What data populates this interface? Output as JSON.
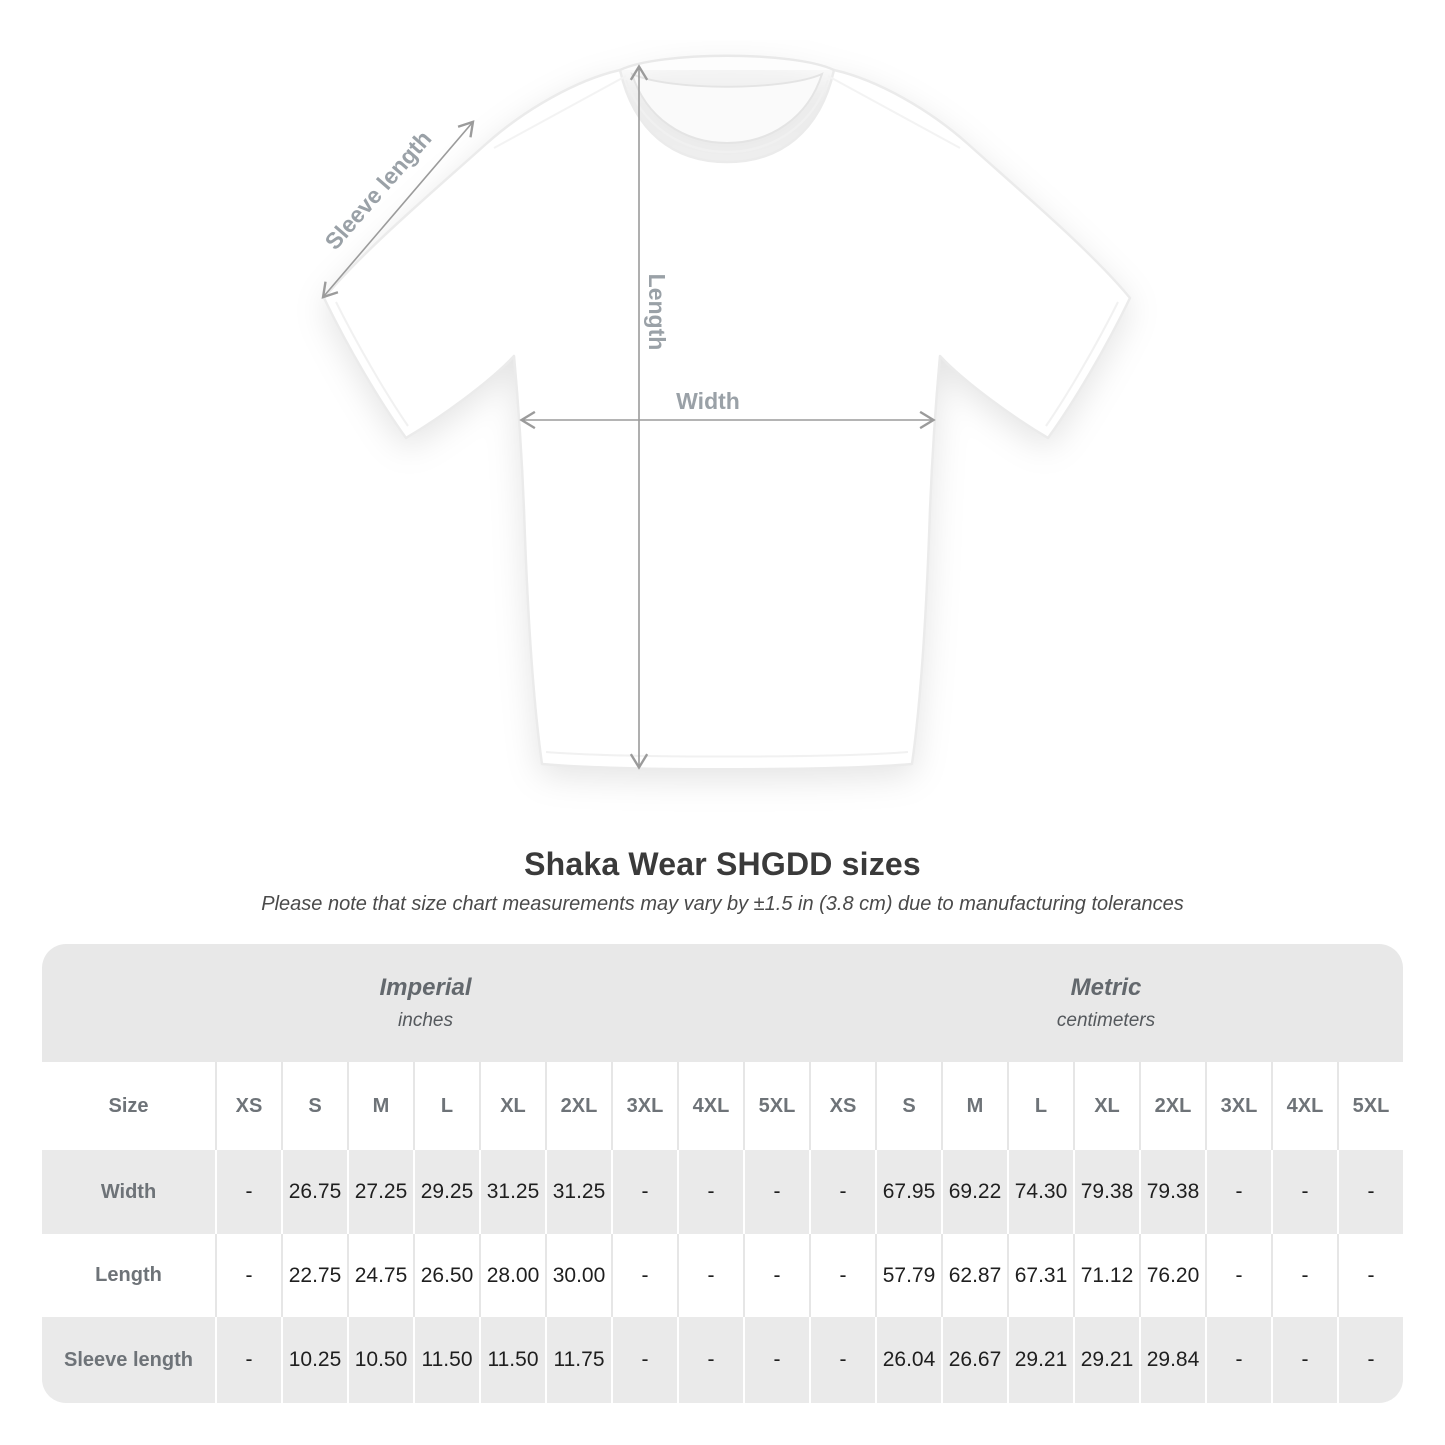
{
  "diagram": {
    "sleeve_label": "Sleeve length",
    "length_label": "Length",
    "width_label": "Width"
  },
  "heading": {
    "title": "Shaka Wear SHGDD sizes",
    "subtitle": "Please note that size chart measurements may vary by ±1.5 in (3.8 cm) due to manufacturing tolerances"
  },
  "table": {
    "groups": [
      {
        "label": "Imperial",
        "unit": "inches"
      },
      {
        "label": "Metric",
        "unit": "centimeters"
      }
    ],
    "corner_header": "Size",
    "sizes": [
      "XS",
      "S",
      "M",
      "L",
      "XL",
      "2XL",
      "3XL",
      "4XL",
      "5XL"
    ],
    "rows": [
      {
        "label": "Width",
        "imperial": [
          "-",
          "26.75",
          "27.25",
          "29.25",
          "31.25",
          "31.25",
          "-",
          "-",
          "-"
        ],
        "metric": [
          "-",
          "67.95",
          "69.22",
          "74.30",
          "79.38",
          "79.38",
          "-",
          "-",
          "-"
        ]
      },
      {
        "label": "Length",
        "imperial": [
          "-",
          "22.75",
          "24.75",
          "26.50",
          "28.00",
          "30.00",
          "-",
          "-",
          "-"
        ],
        "metric": [
          "-",
          "57.79",
          "62.87",
          "67.31",
          "71.12",
          "76.20",
          "-",
          "-",
          "-"
        ]
      },
      {
        "label": "Sleeve length",
        "imperial": [
          "-",
          "10.25",
          "10.50",
          "11.50",
          "11.50",
          "11.75",
          "-",
          "-",
          "-"
        ],
        "metric": [
          "-",
          "26.04",
          "26.67",
          "29.21",
          "29.21",
          "29.84",
          "-",
          "-",
          "-"
        ]
      }
    ],
    "gray_row_indexes": [
      0,
      2
    ]
  },
  "colors": {
    "band_bg": "#e8e8e8",
    "row_alt_bg": "#eaeaea",
    "header_text": "#6e7378",
    "value_text": "#1f1f1f",
    "annotation_text": "#9aa1a7",
    "arrow": "#9b9b9b",
    "title_text": "#3a3a3a",
    "subtitle_text": "#4a4a4a",
    "tee_outline": "#ebebeb"
  }
}
